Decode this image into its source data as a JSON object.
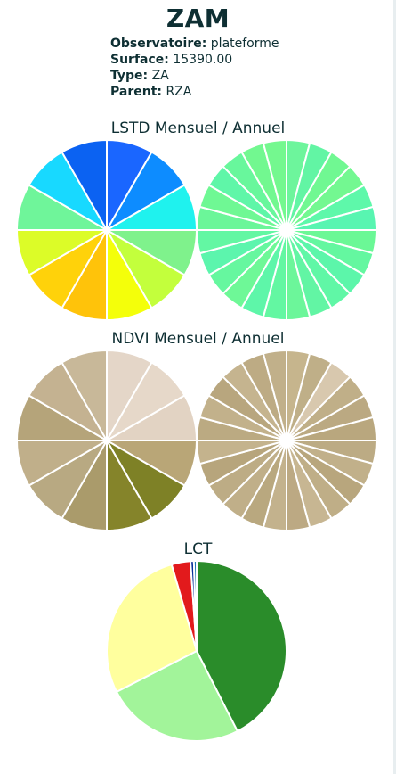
{
  "header": {
    "title": "ZAM",
    "fields": [
      {
        "key": "Observatoire:",
        "value": "plateforme"
      },
      {
        "key": "Surface:",
        "value": "15390.00"
      },
      {
        "key": "Type:",
        "value": "ZA"
      },
      {
        "key": "Parent:",
        "value": "RZA"
      }
    ]
  },
  "sections": {
    "lstd_title": "LSTD Mensuel / Annuel",
    "ndvi_title": "NDVI Mensuel / Annuel",
    "lct_title": "LCT"
  },
  "chart_data": [
    {
      "id": "lstd-monthly",
      "type": "pie",
      "title": "",
      "n_slices": 12,
      "equal_slices": true,
      "colors": [
        "#1a66ff",
        "#0d8cff",
        "#1ff2ee",
        "#7ff28c",
        "#c3ff3c",
        "#f4ff0a",
        "#ffc30a",
        "#ffd20a",
        "#dcfc28",
        "#6ff59a",
        "#18d9ff",
        "#0b62f2"
      ]
    },
    {
      "id": "lstd-annual",
      "type": "pie",
      "title": "",
      "n_slices": 24,
      "equal_slices": true,
      "colors": [
        "#6df59c",
        "#62f5a4",
        "#70f892",
        "#73f891",
        "#5ef8aa",
        "#58f5b1",
        "#6bf896",
        "#64f7a0",
        "#5cf6aa",
        "#60f7a6",
        "#62f5a4",
        "#6cf69a",
        "#63f7a2",
        "#5ef6a9",
        "#6ef897",
        "#66f79f",
        "#5cf5ad",
        "#63f7a3",
        "#6bf699",
        "#6ff894",
        "#5ff6a8",
        "#68f79c",
        "#72f890",
        "#74f88f"
      ]
    },
    {
      "id": "ndvi-monthly",
      "type": "pie",
      "title": "",
      "n_slices": 12,
      "equal_slices": true,
      "colors": [
        "#e4d6c8",
        "#e6d8c9",
        "#e2d3c3",
        "#b9a677",
        "#7e8126",
        "#85842a",
        "#aa9b6b",
        "#b8a982",
        "#c0af8a",
        "#b5a47a",
        "#c4b291",
        "#c8b899"
      ]
    },
    {
      "id": "ndvi-annual",
      "type": "pie",
      "title": "",
      "n_slices": 24,
      "equal_slices": true,
      "colors": [
        "#c6b58d",
        "#bfaf88",
        "#d8c8ae",
        "#c0af88",
        "#bba982",
        "#b9a77e",
        "#bcab84",
        "#c1b08a",
        "#b8a67d",
        "#bfae87",
        "#c7b692",
        "#bca983",
        "#c3b28d",
        "#b9a87f",
        "#c0af89",
        "#bdac85",
        "#b7a57c",
        "#c4b38d",
        "#bbaa82",
        "#c2b18b",
        "#b8a67e",
        "#c5b48f",
        "#bdab84",
        "#c1b08a"
      ]
    },
    {
      "id": "lct",
      "type": "pie",
      "title": "",
      "labels": [
        "",
        "",
        "",
        "",
        "",
        ""
      ],
      "values": [
        42.5,
        25.0,
        28.0,
        3.4,
        0.6,
        0.5
      ],
      "colors": [
        "#2a8c2a",
        "#a2f49a",
        "#ffff9e",
        "#e21a1c",
        "#0a2f9a",
        "#1f78b4"
      ]
    }
  ]
}
